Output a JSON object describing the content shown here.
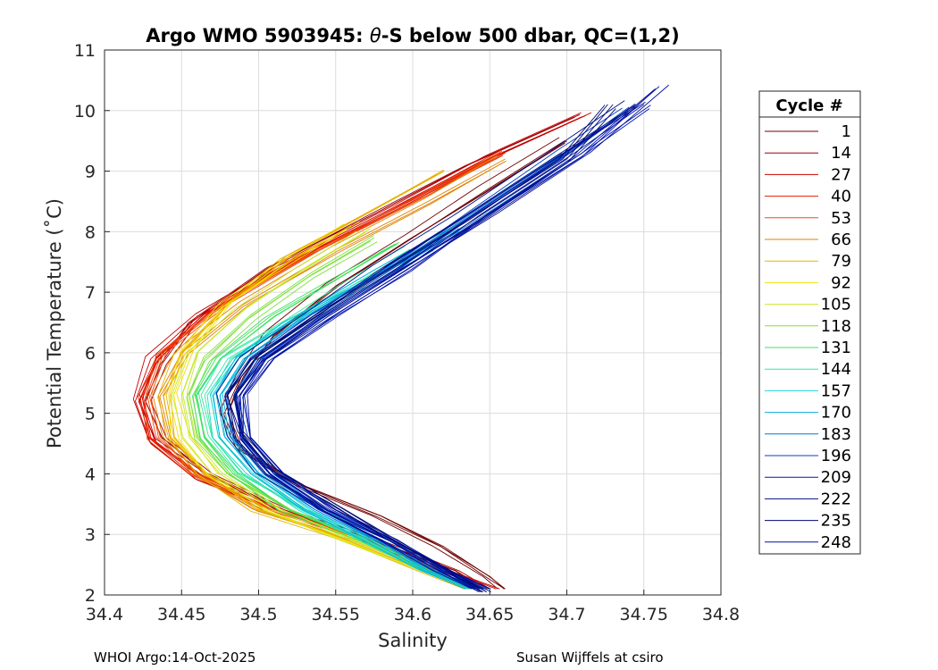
{
  "chart_data": {
    "type": "line",
    "title_prefix": "Argo WMO 5903945: ",
    "title_theta": "θ",
    "title_suffix": "-S below 500 dbar,  QC=(1,2)",
    "xlabel": "Salinity",
    "ylabel": "Potential Temperature (˚C)",
    "xlim": [
      34.4,
      34.8
    ],
    "ylim": [
      2,
      11
    ],
    "xticks": [
      "34.4",
      "34.45",
      "34.5",
      "34.55",
      "34.6",
      "34.65",
      "34.7",
      "34.75",
      "34.8"
    ],
    "yticks": [
      "2",
      "3",
      "4",
      "5",
      "6",
      "7",
      "8",
      "9",
      "10",
      "11"
    ],
    "grid": true,
    "legend": {
      "title": "Cycle #",
      "placement": "outside-right",
      "entries": [
        {
          "label": "1",
          "color": "#6e0000"
        },
        {
          "label": "14",
          "color": "#9b0000"
        },
        {
          "label": "27",
          "color": "#c80000"
        },
        {
          "label": "40",
          "color": "#e41a00"
        },
        {
          "label": "53",
          "color": "#ee4a10"
        },
        {
          "label": "66",
          "color": "#e08000"
        },
        {
          "label": "79",
          "color": "#e8b000"
        },
        {
          "label": "92",
          "color": "#f0e000"
        },
        {
          "label": "105",
          "color": "#c8e830"
        },
        {
          "label": "118",
          "color": "#80e040"
        },
        {
          "label": "131",
          "color": "#40e060"
        },
        {
          "label": "144",
          "color": "#30e8a0"
        },
        {
          "label": "157",
          "color": "#20d8d0"
        },
        {
          "label": "170",
          "color": "#00b0e0"
        },
        {
          "label": "183",
          "color": "#0078d0"
        },
        {
          "label": "196",
          "color": "#0040c8"
        },
        {
          "label": "209",
          "color": "#0018b0"
        },
        {
          "label": "222",
          "color": "#00108a"
        },
        {
          "label": "235",
          "color": "#000870"
        },
        {
          "label": "248",
          "color": "#0010a0"
        }
      ]
    },
    "series_profiles": [
      {
        "cycle": "1",
        "color": "#6e0000",
        "s": [
          34.66,
          34.65,
          34.62,
          34.58,
          34.53,
          34.49,
          34.48,
          34.49,
          34.51,
          34.55,
          34.6,
          34.65,
          34.7
        ],
        "t": [
          2.1,
          2.3,
          2.8,
          3.3,
          3.8,
          4.4,
          5.0,
          5.6,
          6.3,
          7.1,
          7.9,
          8.7,
          9.5
        ]
      },
      {
        "cycle": "14",
        "color": "#9b0000",
        "s": [
          34.65,
          34.63,
          34.58,
          34.52,
          34.47,
          34.44,
          34.43,
          34.44,
          34.46,
          34.51,
          34.58,
          34.64,
          34.71
        ],
        "t": [
          2.1,
          2.4,
          2.9,
          3.4,
          4.0,
          4.6,
          5.2,
          5.8,
          6.5,
          7.4,
          8.3,
          9.1,
          9.9
        ]
      },
      {
        "cycle": "27",
        "color": "#c80000",
        "s": [
          34.65,
          34.62,
          34.57,
          34.51,
          34.46,
          34.43,
          34.42,
          34.43,
          34.46,
          34.52,
          34.59,
          34.65,
          34.71
        ],
        "t": [
          2.1,
          2.4,
          2.9,
          3.4,
          3.9,
          4.5,
          5.2,
          5.9,
          6.6,
          7.5,
          8.4,
          9.2,
          9.9
        ]
      },
      {
        "cycle": "40",
        "color": "#e41a00",
        "s": [
          34.65,
          34.62,
          34.57,
          34.51,
          34.46,
          34.43,
          34.425,
          34.435,
          34.47,
          34.53,
          34.6,
          34.66
        ],
        "t": [
          2.1,
          2.4,
          2.9,
          3.4,
          4.0,
          4.6,
          5.3,
          5.9,
          6.7,
          7.6,
          8.5,
          9.3
        ]
      },
      {
        "cycle": "53",
        "color": "#ee4a10",
        "s": [
          34.65,
          34.62,
          34.57,
          34.51,
          34.46,
          34.435,
          34.43,
          34.44,
          34.48,
          34.54,
          34.61,
          34.66
        ],
        "t": [
          2.1,
          2.4,
          2.9,
          3.4,
          4.0,
          4.6,
          5.3,
          6.0,
          6.8,
          7.7,
          8.6,
          9.3
        ]
      },
      {
        "cycle": "66",
        "color": "#e08000",
        "s": [
          34.64,
          34.61,
          34.56,
          34.5,
          34.46,
          34.44,
          34.435,
          34.45,
          34.49,
          34.55,
          34.61,
          34.66
        ],
        "t": [
          2.1,
          2.4,
          2.9,
          3.4,
          4.0,
          4.6,
          5.3,
          6.0,
          6.8,
          7.7,
          8.5,
          9.2
        ]
      },
      {
        "cycle": "79",
        "color": "#e8b000",
        "s": [
          34.64,
          34.61,
          34.56,
          34.5,
          34.465,
          34.445,
          34.44,
          34.45,
          34.48,
          34.52,
          34.57,
          34.62
        ],
        "t": [
          2.1,
          2.4,
          2.9,
          3.4,
          4.0,
          4.6,
          5.3,
          6.0,
          6.8,
          7.6,
          8.3,
          9.0
        ]
      },
      {
        "cycle": "92",
        "color": "#f0e000",
        "s": [
          34.64,
          34.61,
          34.56,
          34.51,
          34.47,
          34.45,
          34.445,
          34.455,
          34.48,
          34.52,
          34.56
        ],
        "t": [
          2.1,
          2.4,
          2.9,
          3.4,
          4.0,
          4.6,
          5.3,
          6.0,
          6.8,
          7.5,
          8.1
        ]
      },
      {
        "cycle": "105",
        "color": "#c8e830",
        "s": [
          34.64,
          34.61,
          34.56,
          34.51,
          34.475,
          34.455,
          34.45,
          34.46,
          34.49,
          34.53,
          34.57
        ],
        "t": [
          2.1,
          2.4,
          2.9,
          3.4,
          4.0,
          4.6,
          5.3,
          6.0,
          6.7,
          7.4,
          8.0
        ]
      },
      {
        "cycle": "118",
        "color": "#80e040",
        "s": [
          34.64,
          34.61,
          34.57,
          34.52,
          34.48,
          34.46,
          34.455,
          34.465,
          34.495,
          34.535,
          34.575
        ],
        "t": [
          2.1,
          2.4,
          2.9,
          3.4,
          4.0,
          4.6,
          5.3,
          5.9,
          6.6,
          7.3,
          7.9
        ]
      },
      {
        "cycle": "131",
        "color": "#40e060",
        "s": [
          34.64,
          34.61,
          34.57,
          34.52,
          34.485,
          34.465,
          34.46,
          34.475,
          34.51,
          34.55,
          34.59
        ],
        "t": [
          2.1,
          2.4,
          2.9,
          3.4,
          4.0,
          4.6,
          5.3,
          5.9,
          6.6,
          7.2,
          7.8
        ]
      },
      {
        "cycle": "144",
        "color": "#30e8a0",
        "s": [
          34.64,
          34.61,
          34.57,
          34.53,
          34.49,
          34.47,
          34.465,
          34.48,
          34.52,
          34.56,
          34.6
        ],
        "t": [
          2.1,
          2.4,
          2.9,
          3.4,
          4.0,
          4.6,
          5.3,
          5.9,
          6.5,
          7.1,
          7.7
        ]
      },
      {
        "cycle": "157",
        "color": "#20d8d0",
        "s": [
          34.64,
          34.61,
          34.57,
          34.53,
          34.495,
          34.475,
          34.47,
          34.485,
          34.52,
          34.565,
          34.61
        ],
        "t": [
          2.1,
          2.4,
          2.9,
          3.4,
          4.0,
          4.6,
          5.3,
          5.9,
          6.5,
          7.1,
          7.7
        ]
      },
      {
        "cycle": "170",
        "color": "#00b0e0",
        "s": [
          34.64,
          34.61,
          34.575,
          34.535,
          34.5,
          34.48,
          34.475,
          34.49,
          34.53,
          34.58,
          34.63
        ],
        "t": [
          2.1,
          2.4,
          2.9,
          3.4,
          4.0,
          4.6,
          5.3,
          5.9,
          6.6,
          7.3,
          8.0
        ]
      },
      {
        "cycle": "183",
        "color": "#0078d0",
        "s": [
          34.645,
          34.615,
          34.58,
          34.54,
          34.505,
          34.485,
          34.48,
          34.495,
          34.535,
          34.585,
          34.64,
          34.7
        ],
        "t": [
          2.1,
          2.4,
          2.9,
          3.4,
          4.0,
          4.6,
          5.3,
          5.9,
          6.6,
          7.4,
          8.3,
          9.3
        ]
      },
      {
        "cycle": "196",
        "color": "#0040c8",
        "s": [
          34.645,
          34.62,
          34.585,
          34.545,
          34.51,
          34.49,
          34.485,
          34.5,
          34.54,
          34.59,
          34.64,
          34.7,
          34.74
        ],
        "t": [
          2.1,
          2.4,
          2.9,
          3.4,
          4.0,
          4.6,
          5.3,
          5.9,
          6.6,
          7.4,
          8.3,
          9.3,
          10.0
        ]
      },
      {
        "cycle": "209",
        "color": "#0018b0",
        "s": [
          34.645,
          34.62,
          34.585,
          34.545,
          34.51,
          34.49,
          34.488,
          34.505,
          34.545,
          34.595,
          34.645,
          34.705,
          34.75
        ],
        "t": [
          2.1,
          2.4,
          2.9,
          3.4,
          4.0,
          4.6,
          5.3,
          5.9,
          6.6,
          7.4,
          8.3,
          9.3,
          10.1
        ]
      },
      {
        "cycle": "222",
        "color": "#00108a",
        "s": [
          34.645,
          34.62,
          34.585,
          34.545,
          34.505,
          34.485,
          34.48,
          34.495,
          34.535,
          34.58,
          34.63,
          34.69,
          34.745
        ],
        "t": [
          2.1,
          2.4,
          2.9,
          3.4,
          4.0,
          4.6,
          5.3,
          5.9,
          6.6,
          7.4,
          8.2,
          9.2,
          10.1
        ]
      },
      {
        "cycle": "235",
        "color": "#000870",
        "s": [
          34.648,
          34.625,
          34.59,
          34.55,
          34.51,
          34.49,
          34.485,
          34.5,
          34.54,
          34.59,
          34.64,
          34.7,
          34.73
        ],
        "t": [
          2.05,
          2.4,
          2.9,
          3.5,
          4.1,
          4.7,
          5.3,
          5.9,
          6.6,
          7.4,
          8.2,
          9.2,
          10.1
        ]
      },
      {
        "cycle": "248",
        "color": "#0010a0",
        "s": [
          34.645,
          34.62,
          34.585,
          34.545,
          34.51,
          34.49,
          34.49,
          34.505,
          34.545,
          34.595,
          34.65,
          34.71,
          34.76
        ],
        "t": [
          2.05,
          2.4,
          2.9,
          3.4,
          4.0,
          4.6,
          5.3,
          5.9,
          6.6,
          7.4,
          8.3,
          9.3,
          10.4
        ]
      }
    ]
  },
  "footer": {
    "left": "WHOI Argo:14-Oct-2025",
    "right": "Susan Wijffels at csiro"
  }
}
